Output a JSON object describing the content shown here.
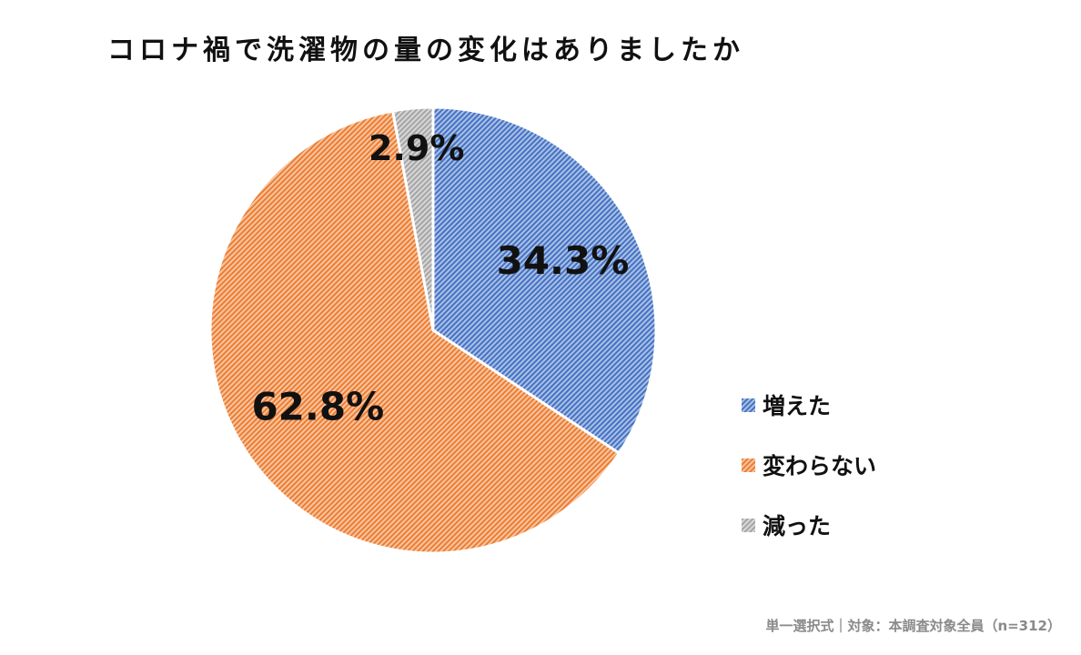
{
  "chart_data": {
    "type": "pie",
    "title": "コロナ禍で洗濯物の量の変化はありましたか",
    "categories": [
      "増えた",
      "変わらない",
      "減った"
    ],
    "values": [
      34.3,
      62.8,
      2.9
    ],
    "value_labels": [
      "34.3%",
      "62.8%",
      "2.9%"
    ],
    "colors": [
      "#4472c4",
      "#ed7d31",
      "#a5a5a5"
    ],
    "fill_style": "diagonal-hatch",
    "start": "12 o'clock",
    "direction": "clockwise",
    "legend_position": "right"
  },
  "footnote": "単一選択式｜対象：本調査対象全員（n=312）"
}
